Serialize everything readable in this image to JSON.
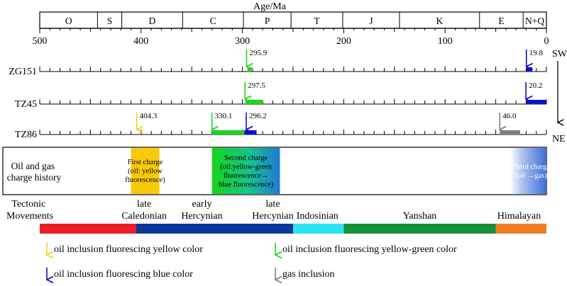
{
  "axis": {
    "title": "Age/Ma",
    "ticks": [
      "500",
      "400",
      "300",
      "200",
      "100",
      "0"
    ],
    "tick_values": [
      500,
      400,
      300,
      200,
      100,
      0
    ]
  },
  "periods": [
    {
      "label": "O",
      "from": 500,
      "to": 443
    },
    {
      "label": "S",
      "from": 443,
      "to": 419
    },
    {
      "label": "D",
      "from": 419,
      "to": 359
    },
    {
      "label": "C",
      "from": 359,
      "to": 299
    },
    {
      "label": "P",
      "from": 299,
      "to": 252
    },
    {
      "label": "T",
      "from": 252,
      "to": 201
    },
    {
      "label": "J",
      "from": 201,
      "to": 145
    },
    {
      "label": "K",
      "from": 145,
      "to": 66
    },
    {
      "label": "E",
      "from": 66,
      "to": 23
    },
    {
      "label": "N+Q",
      "from": 23,
      "to": 0
    }
  ],
  "wells": [
    {
      "name": "ZG151",
      "events": [
        {
          "age": 295.9,
          "label": "295.9",
          "kind": "yellow-green"
        },
        {
          "age": 19.8,
          "label": "19.8",
          "kind": "blue"
        }
      ],
      "bars": [
        {
          "from": 295,
          "to": 291,
          "kind": "yellow-green"
        },
        {
          "from": 19.8,
          "to": 14,
          "kind": "blue"
        }
      ]
    },
    {
      "name": "TZ45",
      "events": [
        {
          "age": 297.5,
          "label": "297.5",
          "kind": "yellow-green"
        },
        {
          "age": 20.2,
          "label": "20.2",
          "kind": "blue"
        }
      ],
      "bars": [
        {
          "from": 297,
          "to": 280,
          "kind": "yellow-green"
        },
        {
          "from": 20.2,
          "to": 0,
          "kind": "blue"
        }
      ]
    },
    {
      "name": "TZ86",
      "events": [
        {
          "age": 404.3,
          "label": "404.3",
          "kind": "yellow"
        },
        {
          "age": 330.1,
          "label": "330.1",
          "kind": "yellow-green"
        },
        {
          "age": 296.2,
          "label": "296.2",
          "kind": "blue"
        },
        {
          "age": 46.0,
          "label": "46.0",
          "kind": "gas"
        }
      ],
      "bars": [
        {
          "from": 330,
          "to": 298,
          "kind": "yellow-green"
        },
        {
          "from": 298,
          "to": 286,
          "kind": "blue"
        },
        {
          "from": 46,
          "to": 26,
          "kind": "gas"
        }
      ]
    }
  ],
  "direction": {
    "top": "SW",
    "bottom": "NE"
  },
  "charge_history": {
    "label_lines": [
      "Oil and gas",
      "charge history"
    ],
    "boxes": [
      {
        "from": 410,
        "to": 382,
        "lines": [
          "First charge",
          "(oil: yellow",
          "fluorescence)"
        ],
        "style": "yellow"
      },
      {
        "from": 330,
        "to": 263,
        "lines": [
          "Second charge",
          "(oil:yellow-green",
          "fluorescence→",
          "blue fluorescence)"
        ],
        "style": "green-blue"
      },
      {
        "from": 36,
        "to": 0,
        "lines": [
          "Third charge",
          "(oil →gas)"
        ],
        "style": "blue-fade"
      }
    ]
  },
  "tectonics": {
    "title_lines": [
      "Tectonic",
      "Movements"
    ],
    "segments": [
      {
        "from": 500,
        "to": 405,
        "color": "#ee1c25"
      },
      {
        "from": 405,
        "to": 250,
        "color": "#0d3796"
      },
      {
        "from": 250,
        "to": 200,
        "color": "#2ae3f2"
      },
      {
        "from": 200,
        "to": 50,
        "color": "#149139"
      },
      {
        "from": 50,
        "to": 0,
        "color": "#f07d23"
      }
    ],
    "labels": [
      {
        "age": 397,
        "lines": [
          "late",
          "Caledonian"
        ]
      },
      {
        "age": 340,
        "lines": [
          "early",
          "Hercynian"
        ]
      },
      {
        "age": 270,
        "lines": [
          "late",
          "Hercynian"
        ]
      },
      {
        "age": 226,
        "lines": [
          "Indosinian"
        ]
      },
      {
        "age": 125,
        "lines": [
          "Yanshan"
        ]
      },
      {
        "age": 27,
        "lines": [
          "Himalayan"
        ]
      }
    ]
  },
  "legend": [
    {
      "kind": "yellow",
      "text": "oil inclusion fluorescing yellow color"
    },
    {
      "kind": "yellow-green",
      "text": "oil inclusion fluorescing yellow-green color"
    },
    {
      "kind": "blue",
      "text": "oil inclusion fluorescing blue color"
    },
    {
      "kind": "gas",
      "text": "gas inclusion"
    }
  ],
  "colors": {
    "yellow": "#f7d21b",
    "yellow-green": "#1fd51f",
    "blue": "#1010c8",
    "gas": "#808080"
  }
}
